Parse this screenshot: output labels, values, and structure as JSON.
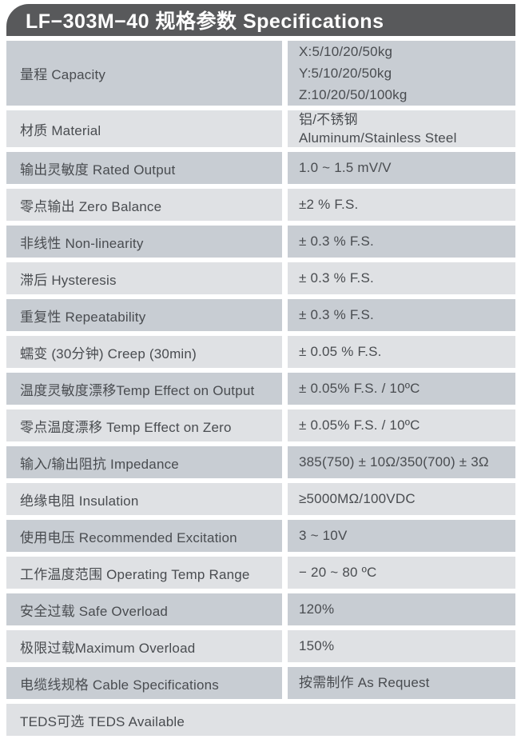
{
  "header": {
    "title": "LF−303M−40  规格参数 Specifications"
  },
  "colors": {
    "header_bg": "#58595b",
    "header_text": "#ffffff",
    "row_dark": "#c8cdd3",
    "row_light": "#dfe1e4",
    "text": "#494c50",
    "page_bg": "#ffffff"
  },
  "table": {
    "rows": [
      {
        "label": "量程 Capacity",
        "value_lines": [
          "X:5/10/20/50kg",
          "Y:5/10/20/50kg",
          "Z:10/20/50/100kg"
        ]
      },
      {
        "label": "材质 Material",
        "value_lines": [
          "铝/不锈钢",
          "Aluminum/Stainless Steel"
        ]
      },
      {
        "label": "输出灵敏度 Rated Output",
        "value_lines": [
          "1.0 ~ 1.5 mV/V"
        ]
      },
      {
        "label": "零点输出 Zero Balance",
        "value_lines": [
          "±2 % F.S."
        ]
      },
      {
        "label": "非线性 Non-linearity",
        "value_lines": [
          "± 0.3 % F.S."
        ]
      },
      {
        "label": "滞后 Hysteresis",
        "value_lines": [
          "± 0.3 % F.S."
        ]
      },
      {
        "label": "重复性 Repeatability",
        "value_lines": [
          "± 0.3 % F.S."
        ]
      },
      {
        "label": "蠕变 (30分钟) Creep (30min)",
        "value_lines": [
          "± 0.05 % F.S."
        ]
      },
      {
        "label": "温度灵敏度漂移Temp Effect on Output",
        "value_lines": [
          "± 0.05% F.S. / 10ºC"
        ]
      },
      {
        "label": "零点温度漂移 Temp Effect on Zero",
        "value_lines": [
          "± 0.05% F.S. / 10ºC"
        ]
      },
      {
        "label": "输入/输出阻抗 Impedance",
        "value_lines": [
          "385(750) ± 10Ω/350(700) ± 3Ω"
        ]
      },
      {
        "label": "绝缘电阻 Insulation",
        "value_lines": [
          "≥5000MΩ/100VDC"
        ]
      },
      {
        "label": "使用电压 Recommended Excitation",
        "value_lines": [
          "3 ~ 10V"
        ]
      },
      {
        "label": "工作温度范围 Operating Temp Range",
        "value_lines": [
          "− 20 ~ 80 ºC"
        ]
      },
      {
        "label": "安全过载 Safe Overload",
        "value_lines": [
          "120%"
        ]
      },
      {
        "label": "极限过载Maximum Overload",
        "value_lines": [
          "150%"
        ]
      },
      {
        "label": "电缆线规格 Cable Specifications",
        "value_lines": [
          "按需制作 As Request"
        ]
      },
      {
        "label": "TEDS可选 TEDS Available",
        "value_lines": null,
        "full_width": true
      }
    ]
  }
}
